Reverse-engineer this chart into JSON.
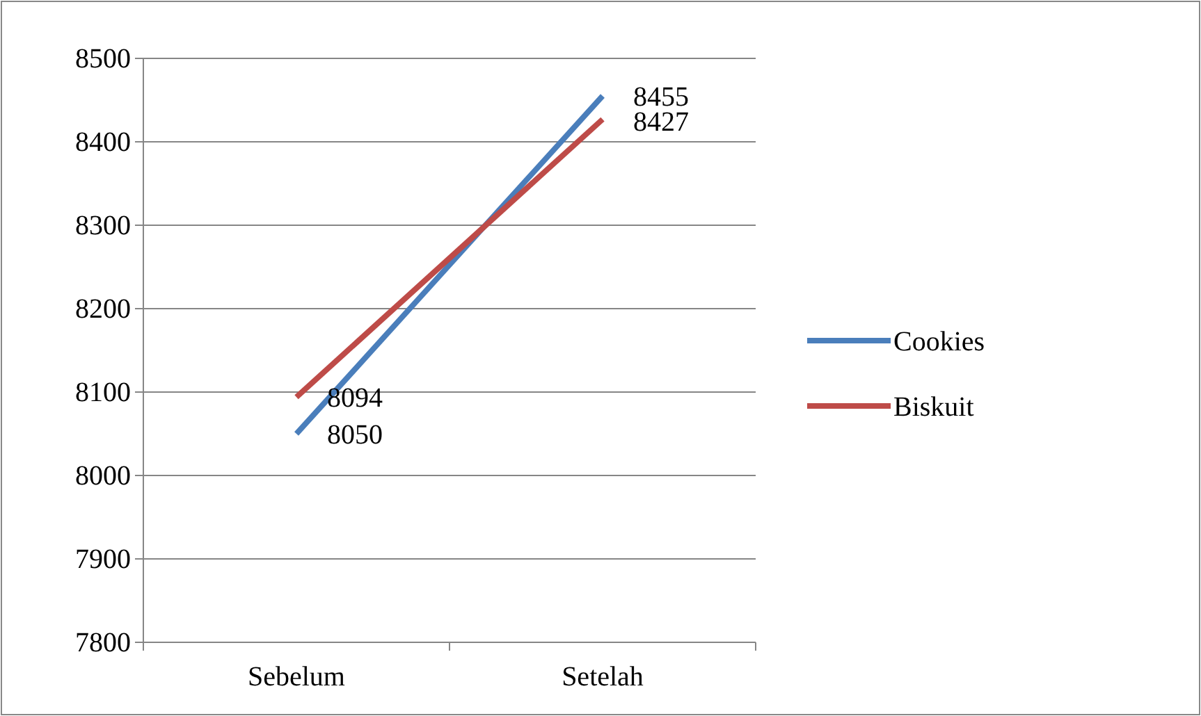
{
  "chart_data": {
    "type": "line",
    "categories": [
      "Sebelum",
      "Setelah"
    ],
    "series": [
      {
        "name": "Cookies",
        "color": "#4a7ebb",
        "values": [
          8050,
          8455
        ]
      },
      {
        "name": "Biskuit",
        "color": "#be4b48",
        "values": [
          8094,
          8427
        ]
      }
    ],
    "ylim": [
      7800,
      8500
    ],
    "yticks": [
      7800,
      7900,
      8000,
      8100,
      8200,
      8300,
      8400,
      8500
    ],
    "grid": "y",
    "legend": "right",
    "data_labels": true,
    "marker": "none",
    "line_style": "solid"
  }
}
